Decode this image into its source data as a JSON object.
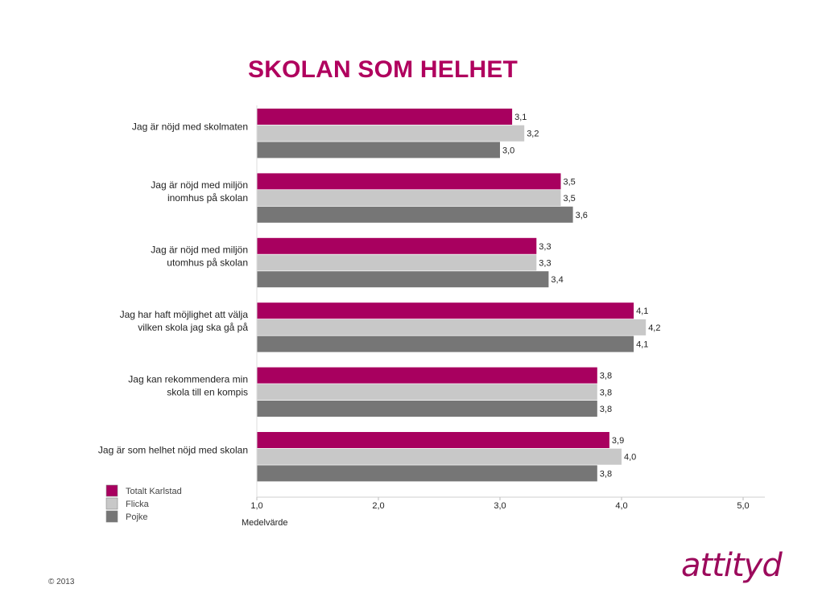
{
  "chart_data": {
    "type": "bar",
    "orientation": "horizontal",
    "title": "SKOLAN SOM HELHET",
    "xlabel": "Medelvärde",
    "xlim": [
      1.0,
      5.0
    ],
    "xticks": [
      "1,0",
      "2,0",
      "3,0",
      "4,0",
      "5,0"
    ],
    "grid": false,
    "legend_position": "bottom-left",
    "categories": [
      [
        "Jag är nöjd med skolmaten"
      ],
      [
        "Jag är nöjd med miljön",
        "inomhus på skolan"
      ],
      [
        "Jag är nöjd med miljön",
        "utomhus på skolan"
      ],
      [
        "Jag har haft möjlighet att välja",
        "vilken skola jag ska gå på"
      ],
      [
        "Jag kan rekommendera min",
        "skola till en kompis"
      ],
      [
        "Jag är som helhet nöjd med skolan"
      ]
    ],
    "series": [
      {
        "name": "Totalt Karlstad",
        "color": "#a8005f",
        "values": [
          3.1,
          3.5,
          3.3,
          4.1,
          3.8,
          3.9
        ],
        "labels": [
          "3,1",
          "3,5",
          "3,3",
          "4,1",
          "3,8",
          "3,9"
        ]
      },
      {
        "name": "Flicka",
        "color": "#c8c8c8",
        "values": [
          3.2,
          3.5,
          3.3,
          4.2,
          3.8,
          4.0
        ],
        "labels": [
          "3,2",
          "3,5",
          "3,3",
          "4,2",
          "3,8",
          "4,0"
        ]
      },
      {
        "name": "Pojke",
        "color": "#767676",
        "values": [
          3.0,
          3.6,
          3.4,
          4.1,
          3.8,
          3.8
        ],
        "labels": [
          "3,0",
          "3,6",
          "3,4",
          "4,1",
          "3,8",
          "3,8"
        ]
      }
    ]
  },
  "footer": {
    "copyright": "© 2013",
    "logo": "attityd"
  }
}
